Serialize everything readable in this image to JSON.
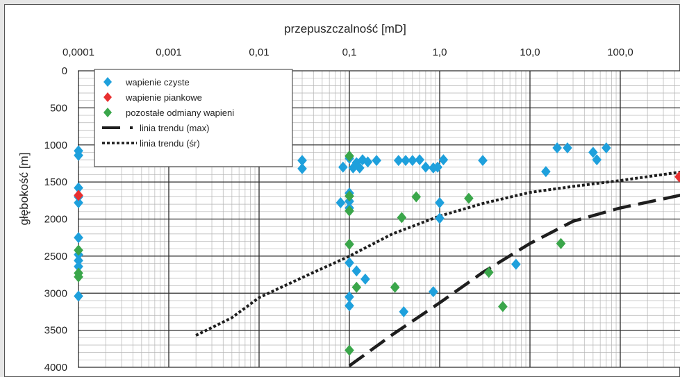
{
  "chart_data": {
    "type": "scatter",
    "xlabel": "przepuszczalność [mD]",
    "ylabel": "głębokość [m]",
    "x_scale": "log",
    "xlim": [
      0.0001,
      500
    ],
    "ylim": [
      4000,
      0
    ],
    "x_ticks": [
      "0,0001",
      "0,001",
      "0,01",
      "0,1",
      "1,0",
      "10,0",
      "100,0"
    ],
    "x_tick_values": [
      0.0001,
      0.001,
      0.01,
      0.1,
      1,
      10,
      100
    ],
    "y_ticks": [
      "0",
      "500",
      "1000",
      "1500",
      "2000",
      "2500",
      "3000",
      "3500",
      "4000"
    ],
    "y_tick_values": [
      0,
      500,
      1000,
      1500,
      2000,
      2500,
      3000,
      3500,
      4000
    ],
    "grid": true,
    "legend_position": "top-left",
    "series": [
      {
        "name": "wapienie czyste",
        "marker": "diamond",
        "color": "#1ea0dc",
        "points": [
          [
            0.0001,
            1080
          ],
          [
            0.0001,
            1140
          ],
          [
            0.0001,
            1580
          ],
          [
            0.0001,
            1700
          ],
          [
            0.0001,
            1780
          ],
          [
            0.0001,
            2250
          ],
          [
            0.0001,
            2480
          ],
          [
            0.0001,
            2560
          ],
          [
            0.0001,
            2640
          ],
          [
            0.0001,
            3040
          ],
          [
            0.03,
            1210
          ],
          [
            0.03,
            1320
          ],
          [
            0.085,
            1300
          ],
          [
            0.1,
            1180
          ],
          [
            0.11,
            1310
          ],
          [
            0.12,
            1240
          ],
          [
            0.13,
            1310
          ],
          [
            0.14,
            1200
          ],
          [
            0.16,
            1230
          ],
          [
            0.2,
            1210
          ],
          [
            0.35,
            1210
          ],
          [
            0.42,
            1210
          ],
          [
            0.5,
            1210
          ],
          [
            0.6,
            1200
          ],
          [
            0.7,
            1300
          ],
          [
            0.85,
            1310
          ],
          [
            0.95,
            1300
          ],
          [
            1.1,
            1200
          ],
          [
            3.0,
            1210
          ],
          [
            0.08,
            1780
          ],
          [
            0.1,
            1650
          ],
          [
            0.1,
            1760
          ],
          [
            0.1,
            1850
          ],
          [
            1.0,
            1780
          ],
          [
            1.0,
            1990
          ],
          [
            0.1,
            2590
          ],
          [
            0.12,
            2700
          ],
          [
            0.15,
            2810
          ],
          [
            0.1,
            3050
          ],
          [
            0.1,
            3170
          ],
          [
            0.4,
            3250
          ],
          [
            0.85,
            2980
          ],
          [
            7.0,
            2610
          ],
          [
            15.0,
            1360
          ],
          [
            20.0,
            1040
          ],
          [
            26.0,
            1040
          ],
          [
            50.0,
            1100
          ],
          [
            55.0,
            1200
          ],
          [
            70.0,
            1040
          ]
        ]
      },
      {
        "name": "wapienie piankowe",
        "marker": "diamond",
        "color": "#e83030",
        "points": [
          [
            0.0001,
            1680
          ],
          [
            450.0,
            1430
          ]
        ]
      },
      {
        "name": "pozostałe odmiany wapieni",
        "marker": "diamond",
        "color": "#3aa64a",
        "points": [
          [
            0.0001,
            2420
          ],
          [
            0.0001,
            2730
          ],
          [
            0.0001,
            2780
          ],
          [
            0.1,
            1150
          ],
          [
            0.1,
            1690
          ],
          [
            0.1,
            1890
          ],
          [
            0.1,
            2340
          ],
          [
            0.12,
            2920
          ],
          [
            0.1,
            3770
          ],
          [
            0.32,
            2920
          ],
          [
            0.38,
            1980
          ],
          [
            0.55,
            1700
          ],
          [
            2.1,
            1720
          ],
          [
            3.5,
            2720
          ],
          [
            5.0,
            3180
          ],
          [
            22.0,
            2330
          ]
        ]
      }
    ],
    "trend_lines": [
      {
        "name": "linia trendu (max)",
        "style": "dashed",
        "color": "#1e1e1e",
        "points": [
          [
            0.1,
            3980
          ],
          [
            0.3,
            3560
          ],
          [
            1.0,
            3130
          ],
          [
            3.0,
            2720
          ],
          [
            10.0,
            2330
          ],
          [
            30.0,
            2030
          ],
          [
            100.0,
            1850
          ],
          [
            500.0,
            1670
          ]
        ]
      },
      {
        "name": "linia trendu (śr)",
        "style": "dotted",
        "color": "#1e1e1e",
        "points": [
          [
            0.002,
            3570
          ],
          [
            0.005,
            3330
          ],
          [
            0.01,
            3060
          ],
          [
            0.03,
            2790
          ],
          [
            0.1,
            2500
          ],
          [
            0.3,
            2200
          ],
          [
            1.0,
            1960
          ],
          [
            3.0,
            1790
          ],
          [
            10.0,
            1640
          ],
          [
            30.0,
            1560
          ],
          [
            100.0,
            1480
          ],
          [
            500.0,
            1360
          ]
        ]
      }
    ]
  }
}
